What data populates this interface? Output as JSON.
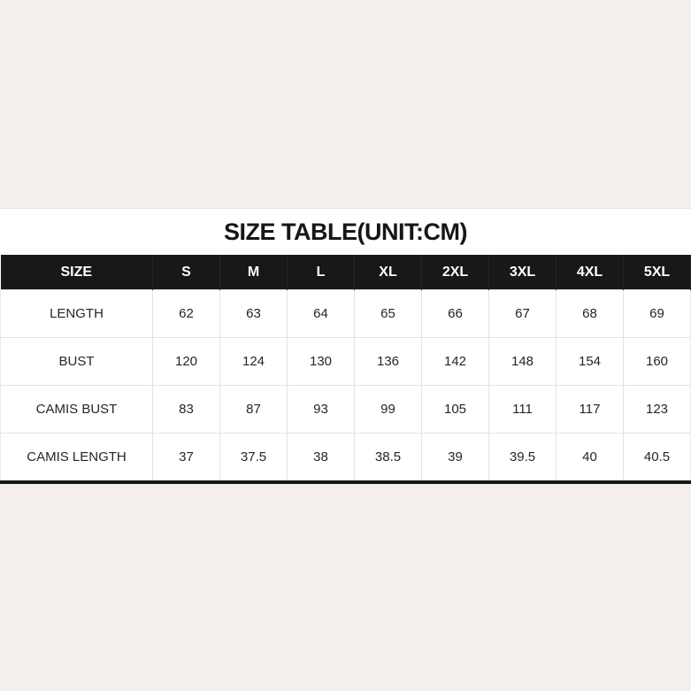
{
  "page": {
    "background_color": "#f4efec"
  },
  "colors": {
    "panel_bg": "#ffffff",
    "header_bg": "#16181a",
    "header_text": "#ffffff",
    "cell_border": "#e3e3e3",
    "bottom_bar": "#17181a",
    "data_text": "#262626",
    "title_text": "#161616"
  },
  "chart_data": {
    "type": "table",
    "title": "SIZE TABLE(UNIT:CM)",
    "columns": [
      "SIZE",
      "S",
      "M",
      "L",
      "XL",
      "2XL",
      "3XL",
      "4XL",
      "5XL"
    ],
    "rows": [
      [
        "LENGTH",
        "62",
        "63",
        "64",
        "65",
        "66",
        "67",
        "68",
        "69"
      ],
      [
        "BUST",
        "120",
        "124",
        "130",
        "136",
        "142",
        "148",
        "154",
        "160"
      ],
      [
        "CAMIS BUST",
        "83",
        "87",
        "93",
        "99",
        "105",
        "111",
        "117",
        "123"
      ],
      [
        "CAMIS LENGTH",
        "37",
        "37.5",
        "38",
        "38.5",
        "39",
        "39.5",
        "40",
        "40.5"
      ]
    ]
  }
}
